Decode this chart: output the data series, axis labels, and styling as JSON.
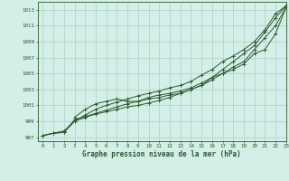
{
  "title": "Graphe pression niveau de la mer (hPa)",
  "bg_color": "#d4eee8",
  "grid_color": "#b8d8d0",
  "line_color": "#2d5a2d",
  "xlim": [
    -0.5,
    23
  ],
  "ylim": [
    996.5,
    1014.0
  ],
  "xticks": [
    0,
    1,
    2,
    3,
    4,
    5,
    6,
    7,
    8,
    9,
    10,
    11,
    12,
    13,
    14,
    15,
    16,
    17,
    18,
    19,
    20,
    21,
    22,
    23
  ],
  "yticks": [
    997,
    999,
    1001,
    1003,
    1005,
    1007,
    1009,
    1011,
    1013
  ],
  "series": [
    {
      "x": [
        0,
        1,
        2,
        3,
        4,
        5,
        6,
        7,
        8,
        9,
        10,
        11,
        12,
        13,
        14,
        15,
        16,
        17,
        18,
        19,
        20,
        21,
        22,
        23
      ],
      "y": [
        997.2,
        997.5,
        997.6,
        999.0,
        999.5,
        999.9,
        1000.2,
        1000.5,
        1000.8,
        1001.0,
        1001.3,
        1001.6,
        1002.0,
        1002.5,
        1003.0,
        1003.5,
        1004.2,
        1005.0,
        1005.8,
        1006.5,
        1008.0,
        1009.5,
        1011.0,
        1013.3
      ],
      "marker": "+"
    },
    {
      "x": [
        0,
        1,
        2,
        3,
        4,
        5,
        6,
        7,
        8,
        9,
        10,
        11,
        12,
        13,
        14,
        15,
        16,
        17,
        18,
        19,
        20,
        21,
        22,
        23
      ],
      "y": [
        997.2,
        997.5,
        997.6,
        999.2,
        999.6,
        1000.0,
        1000.4,
        1000.8,
        1001.2,
        1001.5,
        1001.8,
        1002.0,
        1002.3,
        1002.5,
        1003.0,
        1003.5,
        1004.5,
        1005.0,
        1005.5,
        1006.2,
        1007.5,
        1008.0,
        1010.0,
        1013.3
      ],
      "marker": "+"
    },
    {
      "x": [
        3,
        4,
        5,
        6,
        7,
        8,
        9,
        10,
        11,
        12,
        13,
        14,
        15,
        16,
        17,
        18,
        19,
        20,
        21,
        22,
        23
      ],
      "y": [
        999.5,
        1000.5,
        1001.2,
        1001.5,
        1001.8,
        1001.5,
        1001.5,
        1002.0,
        1002.3,
        1002.5,
        1002.8,
        1003.2,
        1003.8,
        1004.5,
        1005.5,
        1006.5,
        1007.5,
        1008.5,
        1010.2,
        1012.0,
        1013.5
      ],
      "marker": "+"
    },
    {
      "x": [
        0,
        1,
        2,
        3,
        4,
        5,
        6,
        7,
        8,
        9,
        10,
        11,
        12,
        13,
        14,
        15,
        16,
        17,
        18,
        19,
        20,
        21,
        22,
        23
      ],
      "y": [
        997.2,
        997.5,
        997.8,
        999.0,
        999.8,
        1000.5,
        1001.0,
        1001.4,
        1001.8,
        1002.2,
        1002.5,
        1002.8,
        1003.2,
        1003.5,
        1004.0,
        1004.8,
        1005.5,
        1006.5,
        1007.2,
        1008.0,
        1009.0,
        1010.5,
        1012.5,
        1013.5
      ],
      "marker": "+"
    }
  ]
}
